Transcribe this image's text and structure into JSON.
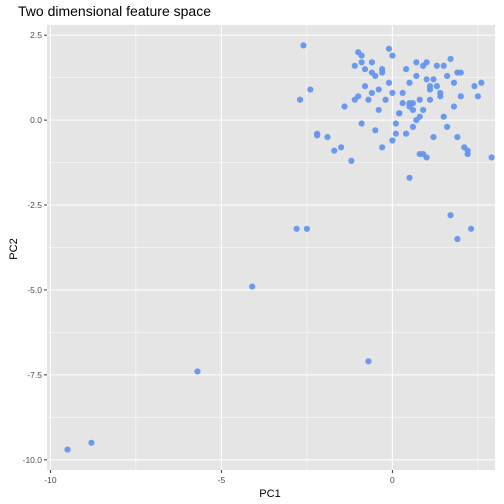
{
  "chart_data": {
    "type": "scatter",
    "title": "Two dimensional feature space",
    "xlabel": "PC1",
    "ylabel": "PC2",
    "xlim": [
      -10.1,
      3.0
    ],
    "ylim": [
      -10.3,
      2.8
    ],
    "x_ticks": [
      -10,
      -5,
      0
    ],
    "x_tick_labels": [
      "-10",
      "-5",
      "0"
    ],
    "y_ticks": [
      2.5,
      0,
      -2.5,
      -5,
      -7.5,
      -10
    ],
    "y_tick_labels": [
      "2.5",
      "0.0",
      "-2.5",
      "-5.0",
      "-7.5",
      "-10.0"
    ],
    "grid": true,
    "background_color": "#E5E5E5",
    "grid_color": "#FFFFFF",
    "point_color": "#6495ED",
    "x": [
      -9.5,
      -8.8,
      -5.7,
      -4.1,
      -2.6,
      -2.4,
      -2.8,
      -2.5,
      -2.2,
      -1.9,
      -1.7,
      -1.5,
      -1.4,
      -1.2,
      -1.1,
      -1.0,
      -0.9,
      -0.8,
      -0.8,
      -0.7,
      -0.6,
      -0.6,
      -0.5,
      -0.4,
      -0.3,
      -0.2,
      -0.1,
      0.0,
      0.1,
      0.1,
      0.2,
      0.3,
      0.4,
      0.5,
      0.5,
      0.6,
      0.7,
      0.7,
      0.8,
      0.8,
      0.9,
      1.0,
      1.0,
      1.1,
      1.1,
      1.2,
      1.3,
      1.4,
      1.5,
      1.6,
      1.7,
      1.8,
      1.9,
      2.0,
      2.1,
      2.2,
      2.4,
      2.6,
      2.9,
      -0.7,
      -1.1,
      -0.9,
      -0.6,
      -0.5,
      -0.4,
      -0.3,
      -0.1,
      0.0,
      0.2,
      0.3,
      0.4,
      0.5,
      0.6,
      0.7,
      0.8,
      0.9,
      1.0,
      1.2,
      1.3,
      1.4,
      1.5,
      1.6,
      1.8,
      1.9,
      2.0,
      2.2,
      2.5,
      1.7,
      1.9,
      2.3,
      -2.7,
      -2.2,
      -1.0,
      0.5,
      0.9,
      -0.9,
      -0.3,
      0.0,
      0.6,
      1.1
    ],
    "y": [
      -9.7,
      -9.5,
      -7.4,
      -4.9,
      2.2,
      0.9,
      -3.2,
      -3.2,
      -0.45,
      -0.5,
      -0.9,
      -0.8,
      0.4,
      -1.2,
      1.6,
      2.0,
      1.9,
      1.0,
      1.5,
      0.6,
      0.8,
      1.7,
      1.3,
      0.3,
      -0.8,
      0.6,
      1.1,
      1.9,
      -0.1,
      -0.4,
      0.2,
      0.8,
      1.5,
      0.5,
      -1.7,
      0.3,
      1.3,
      0.0,
      -1.0,
      0.6,
      1.6,
      1.7,
      -1.1,
      0.9,
      0.6,
      1.2,
      1.0,
      0.7,
      1.6,
      1.3,
      1.8,
      1.1,
      1.4,
      1.4,
      -0.8,
      -0.9,
      1.0,
      1.1,
      -1.1,
      -7.1,
      0.6,
      1.7,
      1.4,
      -0.3,
      0.9,
      1.5,
      2.1,
      -0.6,
      0.2,
      0.5,
      -0.4,
      0.4,
      -0.2,
      1.7,
      0.1,
      0.3,
      1.2,
      -0.5,
      1.6,
      0.8,
      0.1,
      -0.2,
      0.4,
      -0.5,
      0.7,
      -1.0,
      0.7,
      -2.8,
      -3.5,
      -3.2,
      0.6,
      -0.4,
      0.7,
      1.1,
      -1.0,
      -0.1,
      1.4,
      0.8,
      0.5,
      1.0
    ]
  }
}
